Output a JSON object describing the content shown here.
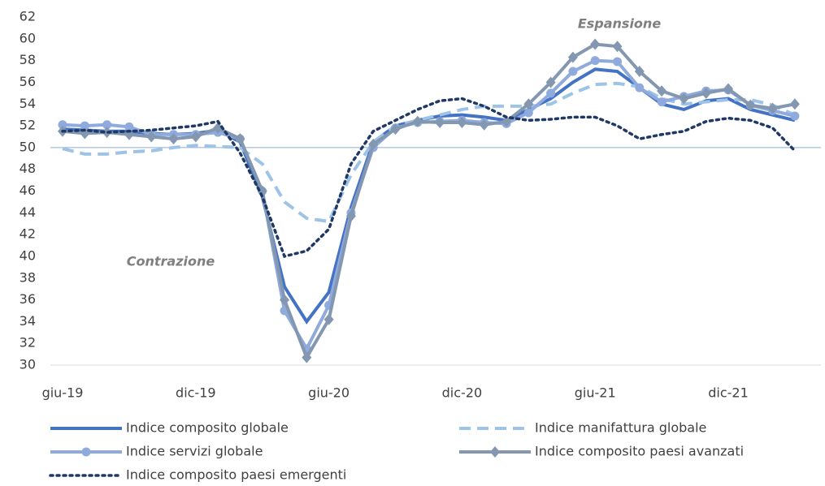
{
  "chart_data": {
    "type": "line",
    "categories": [
      "giu-19",
      null,
      null,
      null,
      null,
      null,
      "dic-19",
      null,
      null,
      null,
      null,
      null,
      "giu-20",
      null,
      null,
      null,
      null,
      null,
      "dic-20",
      null,
      null,
      null,
      null,
      null,
      "giu-21",
      null,
      null,
      null,
      null,
      null,
      "dic-21",
      null,
      null,
      null
    ],
    "ylim": [
      30,
      62
    ],
    "yticks": [
      30,
      32,
      34,
      36,
      38,
      40,
      42,
      44,
      46,
      48,
      50,
      52,
      54,
      56,
      58,
      60,
      62
    ],
    "reference_line": 50,
    "annotations": [
      "Espansione",
      "Contrazione"
    ],
    "series": [
      {
        "name": "Indice composito globale",
        "color": "#4472c4",
        "style": "solid",
        "marker": "none",
        "values": [
          51.7,
          51.6,
          51.5,
          51.5,
          51.3,
          51.2,
          51.3,
          51.6,
          50.5,
          45.5,
          37.2,
          34.0,
          36.7,
          44.5,
          50.5,
          52.0,
          52.5,
          52.9,
          53.0,
          52.8,
          52.5,
          53.5,
          54.5,
          56.0,
          57.2,
          57.0,
          55.5,
          54.0,
          53.5,
          54.3,
          54.5,
          53.5,
          53.0,
          52.5
        ]
      },
      {
        "name": "Indice manifattura globale",
        "color": "#9dc3e6",
        "style": "dashed",
        "marker": "none",
        "values": [
          49.9,
          49.4,
          49.4,
          49.6,
          49.7,
          50.0,
          50.2,
          50.1,
          50.0,
          48.5,
          45.0,
          43.5,
          43.2,
          47.5,
          50.5,
          52.0,
          52.5,
          53.0,
          53.5,
          53.8,
          53.8,
          53.8,
          54.0,
          55.0,
          55.8,
          55.9,
          55.6,
          54.5,
          54.0,
          54.2,
          54.4,
          54.4,
          53.9,
          53.0
        ]
      },
      {
        "name": "Indice servizi globale",
        "color": "#8faadc",
        "style": "solid",
        "marker": "circle",
        "values": [
          52.1,
          52.0,
          52.1,
          51.9,
          51.2,
          51.2,
          51.2,
          51.4,
          50.8,
          46.0,
          35.0,
          31.5,
          35.5,
          44.0,
          50.0,
          51.8,
          52.3,
          52.4,
          52.5,
          52.3,
          52.2,
          53.2,
          55.0,
          57.0,
          58.0,
          57.9,
          55.5,
          54.2,
          54.7,
          55.2,
          55.3,
          53.9,
          53.4,
          52.9
        ]
      },
      {
        "name": "Indice composito paesi avanzati",
        "color": "#8497b0",
        "style": "solid",
        "marker": "diamond",
        "values": [
          51.5,
          51.3,
          51.4,
          51.2,
          51.0,
          50.8,
          51.0,
          51.8,
          50.8,
          46.0,
          36.0,
          30.7,
          34.2,
          43.7,
          50.3,
          51.7,
          52.4,
          52.3,
          52.3,
          52.1,
          52.4,
          54.0,
          56.0,
          58.3,
          59.5,
          59.3,
          57.0,
          55.2,
          54.5,
          55.0,
          55.4,
          53.9,
          53.6,
          54.0
        ]
      },
      {
        "name": "Indice composito paesi emergenti",
        "color": "#1f3864",
        "style": "dotted",
        "marker": "none",
        "values": [
          51.5,
          51.6,
          51.4,
          51.5,
          51.6,
          51.8,
          52.0,
          52.4,
          49.5,
          45.5,
          40.0,
          40.5,
          42.5,
          48.5,
          51.5,
          52.5,
          53.5,
          54.3,
          54.5,
          53.8,
          52.8,
          52.5,
          52.6,
          52.8,
          52.8,
          52.0,
          50.8,
          51.2,
          51.5,
          52.4,
          52.7,
          52.5,
          51.8,
          49.7
        ]
      }
    ]
  }
}
